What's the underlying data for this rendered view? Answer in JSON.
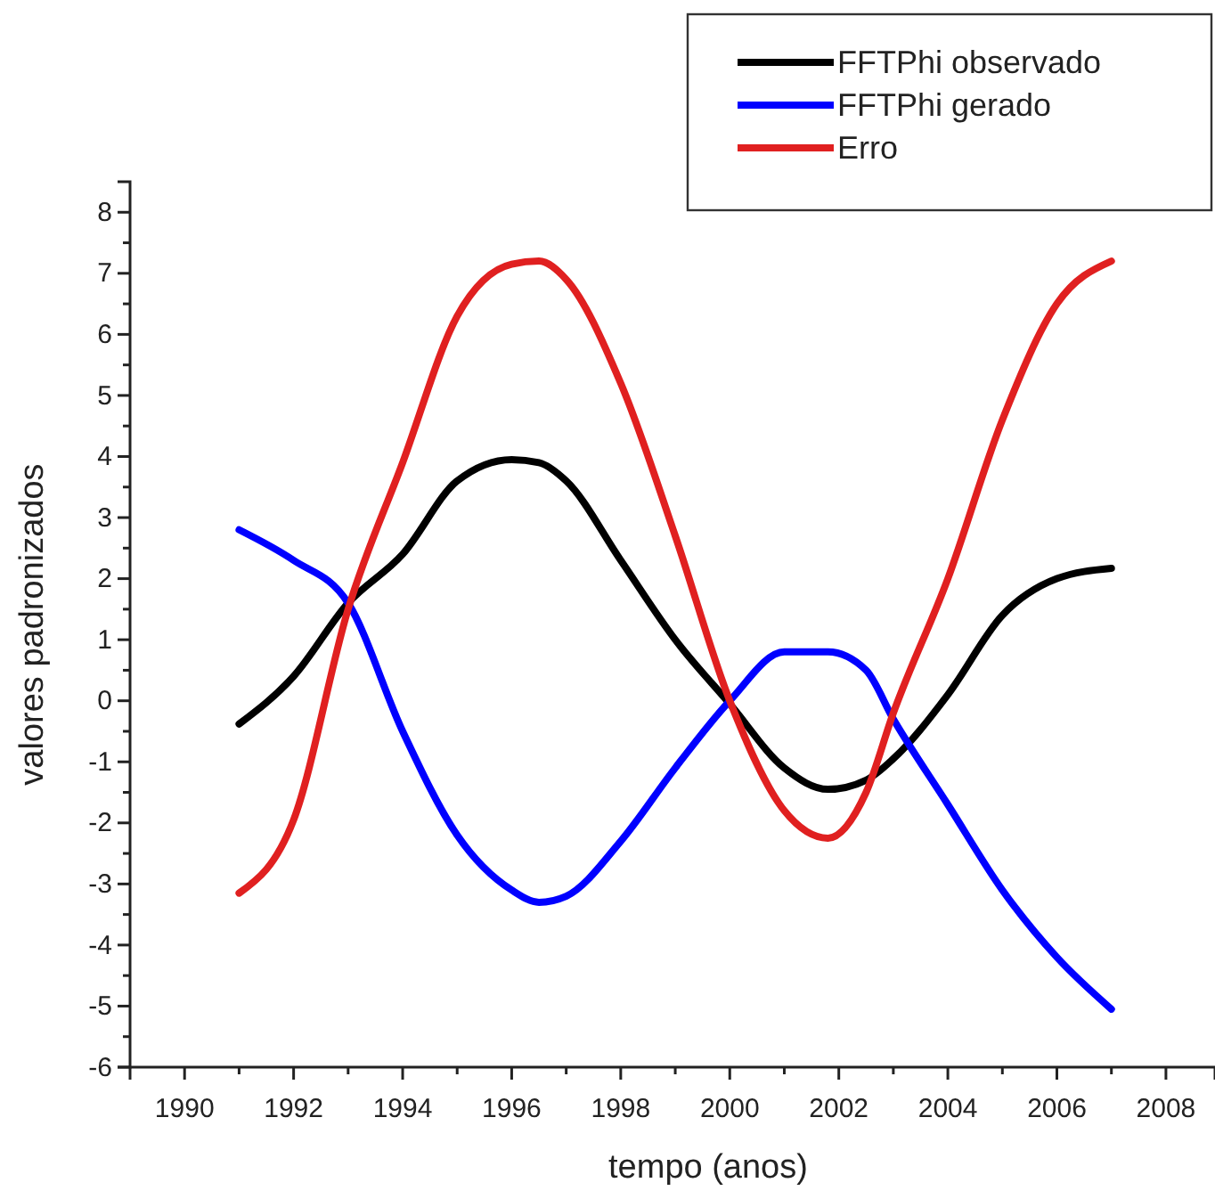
{
  "chart_data": {
    "type": "line",
    "xlabel": "tempo (anos)",
    "ylabel": "valores padronizados",
    "xlim": [
      1989,
      2008.9
    ],
    "ylim": [
      -6,
      8.5
    ],
    "xticks": [
      1990,
      1992,
      1994,
      1996,
      1998,
      2000,
      2002,
      2004,
      2006,
      2008
    ],
    "yticks": [
      -6,
      -5,
      -4,
      -3,
      -2,
      -1,
      0,
      1,
      2,
      3,
      4,
      5,
      6,
      7,
      8
    ],
    "grid": false,
    "legend": "top right",
    "marker": "none",
    "line_style": "solid",
    "x": [
      1991,
      1992,
      1993,
      1994,
      1995,
      1996,
      1996.5,
      1997,
      1998,
      1999,
      2000,
      2001,
      2001.8,
      2002.5,
      2003,
      2004,
      2005,
      2006,
      2007
    ],
    "series": [
      {
        "name": "FFTPhi observado",
        "color": "#000000",
        "values": [
          -0.38,
          0.4,
          1.6,
          2.4,
          3.6,
          3.95,
          3.9,
          3.6,
          2.3,
          1.0,
          -0.05,
          -1.1,
          -1.45,
          -1.3,
          -0.95,
          0.1,
          1.4,
          2.0,
          2.17
        ]
      },
      {
        "name": "FFTPhi gerado",
        "color": "#0000ff",
        "values": [
          2.8,
          2.3,
          1.6,
          -0.5,
          -2.2,
          -3.1,
          -3.3,
          -3.2,
          -2.3,
          -1.1,
          0,
          0.8,
          0.8,
          0.5,
          -0.3,
          -1.7,
          -3.1,
          -4.2,
          -5.05
        ]
      },
      {
        "name": "Erro",
        "color": "#e02020",
        "values": [
          -3.15,
          -1.95,
          1.5,
          3.9,
          6.3,
          7.15,
          7.2,
          6.9,
          5.2,
          2.7,
          0,
          -1.8,
          -2.25,
          -1.5,
          -0.2,
          2.0,
          4.6,
          6.5,
          7.2
        ]
      }
    ]
  }
}
